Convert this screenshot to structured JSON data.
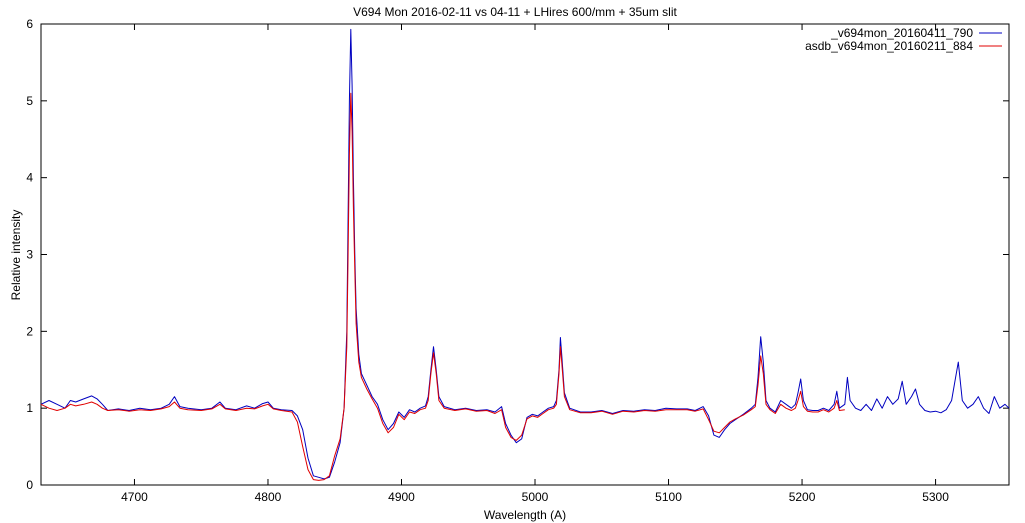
{
  "chart_data": {
    "type": "line",
    "title": "V694 Mon 2016-02-11 vs 04-11 + LHires 600/mm + 35um slit",
    "xlabel": "Wavelength (A)",
    "ylabel": "Relative intensity",
    "xlim": [
      4630,
      5355
    ],
    "ylim": [
      0,
      6
    ],
    "xticks": [
      4700,
      4800,
      4900,
      5000,
      5100,
      5200,
      5300
    ],
    "yticks": [
      0,
      1,
      2,
      3,
      4,
      5,
      6
    ],
    "grid": false,
    "legend": "top-right",
    "series": [
      {
        "name": "_v694mon_20160411_790",
        "color": "#0000c0",
        "points": [
          [
            4630,
            1.05
          ],
          [
            4636,
            1.1
          ],
          [
            4642,
            1.05
          ],
          [
            4648,
            1.0
          ],
          [
            4652,
            1.1
          ],
          [
            4656,
            1.08
          ],
          [
            4662,
            1.12
          ],
          [
            4668,
            1.16
          ],
          [
            4672,
            1.12
          ],
          [
            4676,
            1.05
          ],
          [
            4680,
            0.97
          ],
          [
            4688,
            0.99
          ],
          [
            4696,
            0.97
          ],
          [
            4704,
            1.0
          ],
          [
            4712,
            0.98
          ],
          [
            4720,
            1.0
          ],
          [
            4726,
            1.05
          ],
          [
            4730,
            1.15
          ],
          [
            4734,
            1.02
          ],
          [
            4740,
            1.0
          ],
          [
            4750,
            0.98
          ],
          [
            4758,
            1.0
          ],
          [
            4764,
            1.08
          ],
          [
            4768,
            1.0
          ],
          [
            4776,
            0.98
          ],
          [
            4784,
            1.03
          ],
          [
            4790,
            1.0
          ],
          [
            4796,
            1.06
          ],
          [
            4800,
            1.08
          ],
          [
            4804,
            1.0
          ],
          [
            4810,
            0.98
          ],
          [
            4818,
            0.97
          ],
          [
            4822,
            0.9
          ],
          [
            4826,
            0.72
          ],
          [
            4830,
            0.35
          ],
          [
            4834,
            0.12
          ],
          [
            4838,
            0.1
          ],
          [
            4842,
            0.08
          ],
          [
            4846,
            0.1
          ],
          [
            4850,
            0.3
          ],
          [
            4854,
            0.55
          ],
          [
            4857,
            1.0
          ],
          [
            4859,
            2.0
          ],
          [
            4860,
            3.5
          ],
          [
            4861,
            5.0
          ],
          [
            4862,
            5.93
          ],
          [
            4863,
            5.2
          ],
          [
            4864,
            4.0
          ],
          [
            4865,
            3.0
          ],
          [
            4866,
            2.3
          ],
          [
            4868,
            1.7
          ],
          [
            4870,
            1.45
          ],
          [
            4874,
            1.3
          ],
          [
            4878,
            1.15
          ],
          [
            4882,
            1.05
          ],
          [
            4886,
            0.85
          ],
          [
            4890,
            0.72
          ],
          [
            4894,
            0.8
          ],
          [
            4898,
            0.95
          ],
          [
            4902,
            0.88
          ],
          [
            4906,
            0.98
          ],
          [
            4910,
            0.95
          ],
          [
            4914,
            1.0
          ],
          [
            4918,
            1.03
          ],
          [
            4920,
            1.15
          ],
          [
            4922,
            1.5
          ],
          [
            4924,
            1.8
          ],
          [
            4926,
            1.5
          ],
          [
            4928,
            1.15
          ],
          [
            4932,
            1.02
          ],
          [
            4940,
            0.98
          ],
          [
            4948,
            1.0
          ],
          [
            4956,
            0.97
          ],
          [
            4964,
            0.98
          ],
          [
            4970,
            0.95
          ],
          [
            4975,
            1.02
          ],
          [
            4978,
            0.8
          ],
          [
            4982,
            0.65
          ],
          [
            4986,
            0.55
          ],
          [
            4990,
            0.6
          ],
          [
            4994,
            0.88
          ],
          [
            4998,
            0.92
          ],
          [
            5002,
            0.9
          ],
          [
            5006,
            0.95
          ],
          [
            5010,
            1.0
          ],
          [
            5014,
            1.02
          ],
          [
            5016,
            1.1
          ],
          [
            5018,
            1.5
          ],
          [
            5019,
            1.92
          ],
          [
            5020,
            1.7
          ],
          [
            5022,
            1.2
          ],
          [
            5026,
            1.0
          ],
          [
            5034,
            0.95
          ],
          [
            5042,
            0.95
          ],
          [
            5050,
            0.97
          ],
          [
            5058,
            0.93
          ],
          [
            5066,
            0.97
          ],
          [
            5074,
            0.96
          ],
          [
            5082,
            0.98
          ],
          [
            5090,
            0.97
          ],
          [
            5098,
            1.0
          ],
          [
            5106,
            0.99
          ],
          [
            5114,
            0.99
          ],
          [
            5120,
            0.97
          ],
          [
            5126,
            1.02
          ],
          [
            5130,
            0.9
          ],
          [
            5134,
            0.65
          ],
          [
            5138,
            0.62
          ],
          [
            5142,
            0.72
          ],
          [
            5146,
            0.8
          ],
          [
            5150,
            0.85
          ],
          [
            5156,
            0.92
          ],
          [
            5162,
            1.0
          ],
          [
            5165,
            1.05
          ],
          [
            5167,
            1.4
          ],
          [
            5169,
            1.93
          ],
          [
            5171,
            1.6
          ],
          [
            5173,
            1.1
          ],
          [
            5176,
            1.0
          ],
          [
            5180,
            0.95
          ],
          [
            5184,
            1.1
          ],
          [
            5188,
            1.05
          ],
          [
            5192,
            1.0
          ],
          [
            5195,
            1.05
          ],
          [
            5197,
            1.2
          ],
          [
            5199,
            1.38
          ],
          [
            5201,
            1.1
          ],
          [
            5204,
            0.98
          ],
          [
            5208,
            0.97
          ],
          [
            5212,
            0.97
          ],
          [
            5216,
            1.0
          ],
          [
            5220,
            0.97
          ],
          [
            5224,
            1.05
          ],
          [
            5226,
            1.22
          ],
          [
            5228,
            1.0
          ],
          [
            5232,
            1.05
          ],
          [
            5234,
            1.4
          ],
          [
            5236,
            1.1
          ],
          [
            5240,
            1.0
          ],
          [
            5244,
            0.97
          ],
          [
            5248,
            1.05
          ],
          [
            5252,
            0.97
          ],
          [
            5256,
            1.12
          ],
          [
            5260,
            1.0
          ],
          [
            5264,
            1.15
          ],
          [
            5268,
            1.05
          ],
          [
            5272,
            1.12
          ],
          [
            5275,
            1.35
          ],
          [
            5278,
            1.05
          ],
          [
            5282,
            1.15
          ],
          [
            5285,
            1.25
          ],
          [
            5288,
            1.05
          ],
          [
            5292,
            0.97
          ],
          [
            5296,
            0.95
          ],
          [
            5300,
            0.96
          ],
          [
            5304,
            0.94
          ],
          [
            5308,
            0.98
          ],
          [
            5312,
            1.1
          ],
          [
            5315,
            1.4
          ],
          [
            5317,
            1.6
          ],
          [
            5320,
            1.1
          ],
          [
            5324,
            1.0
          ],
          [
            5328,
            1.05
          ],
          [
            5332,
            1.15
          ],
          [
            5336,
            1.0
          ],
          [
            5340,
            0.93
          ],
          [
            5344,
            1.15
          ],
          [
            5348,
            1.0
          ],
          [
            5352,
            1.05
          ],
          [
            5355,
            1.0
          ]
        ]
      },
      {
        "name": "asdb_v694mon_20160211_884",
        "color": "#e00000",
        "points": [
          [
            4630,
            1.05
          ],
          [
            4636,
            1.0
          ],
          [
            4642,
            0.97
          ],
          [
            4648,
            1.0
          ],
          [
            4652,
            1.05
          ],
          [
            4656,
            1.03
          ],
          [
            4662,
            1.05
          ],
          [
            4668,
            1.08
          ],
          [
            4672,
            1.05
          ],
          [
            4676,
            1.0
          ],
          [
            4680,
            0.97
          ],
          [
            4688,
            0.98
          ],
          [
            4696,
            0.96
          ],
          [
            4704,
            0.98
          ],
          [
            4712,
            0.97
          ],
          [
            4720,
            0.99
          ],
          [
            4726,
            1.02
          ],
          [
            4730,
            1.08
          ],
          [
            4734,
            1.0
          ],
          [
            4740,
            0.98
          ],
          [
            4750,
            0.97
          ],
          [
            4758,
            0.99
          ],
          [
            4764,
            1.05
          ],
          [
            4768,
            0.99
          ],
          [
            4776,
            0.97
          ],
          [
            4784,
            1.0
          ],
          [
            4790,
            0.99
          ],
          [
            4796,
            1.03
          ],
          [
            4800,
            1.05
          ],
          [
            4804,
            0.99
          ],
          [
            4810,
            0.97
          ],
          [
            4818,
            0.95
          ],
          [
            4822,
            0.82
          ],
          [
            4826,
            0.5
          ],
          [
            4830,
            0.2
          ],
          [
            4834,
            0.07
          ],
          [
            4838,
            0.06
          ],
          [
            4842,
            0.07
          ],
          [
            4846,
            0.12
          ],
          [
            4850,
            0.38
          ],
          [
            4854,
            0.6
          ],
          [
            4857,
            1.0
          ],
          [
            4859,
            1.8
          ],
          [
            4860,
            3.0
          ],
          [
            4861,
            4.3
          ],
          [
            4862,
            5.1
          ],
          [
            4863,
            4.6
          ],
          [
            4864,
            3.6
          ],
          [
            4865,
            2.8
          ],
          [
            4866,
            2.1
          ],
          [
            4868,
            1.6
          ],
          [
            4870,
            1.4
          ],
          [
            4874,
            1.25
          ],
          [
            4878,
            1.12
          ],
          [
            4882,
            1.0
          ],
          [
            4886,
            0.8
          ],
          [
            4890,
            0.68
          ],
          [
            4894,
            0.75
          ],
          [
            4898,
            0.92
          ],
          [
            4902,
            0.85
          ],
          [
            4906,
            0.95
          ],
          [
            4910,
            0.93
          ],
          [
            4914,
            0.98
          ],
          [
            4918,
            1.0
          ],
          [
            4920,
            1.1
          ],
          [
            4922,
            1.45
          ],
          [
            4924,
            1.72
          ],
          [
            4926,
            1.45
          ],
          [
            4928,
            1.1
          ],
          [
            4932,
            1.0
          ],
          [
            4940,
            0.97
          ],
          [
            4948,
            0.99
          ],
          [
            4956,
            0.96
          ],
          [
            4964,
            0.97
          ],
          [
            4970,
            0.93
          ],
          [
            4975,
            0.98
          ],
          [
            4978,
            0.75
          ],
          [
            4982,
            0.62
          ],
          [
            4986,
            0.58
          ],
          [
            4990,
            0.65
          ],
          [
            4994,
            0.86
          ],
          [
            4998,
            0.9
          ],
          [
            5002,
            0.88
          ],
          [
            5006,
            0.93
          ],
          [
            5010,
            0.98
          ],
          [
            5014,
            1.0
          ],
          [
            5016,
            1.05
          ],
          [
            5018,
            1.45
          ],
          [
            5019,
            1.8
          ],
          [
            5020,
            1.6
          ],
          [
            5022,
            1.15
          ],
          [
            5026,
            0.98
          ],
          [
            5034,
            0.94
          ],
          [
            5042,
            0.94
          ],
          [
            5050,
            0.96
          ],
          [
            5058,
            0.92
          ],
          [
            5066,
            0.96
          ],
          [
            5074,
            0.95
          ],
          [
            5082,
            0.97
          ],
          [
            5090,
            0.96
          ],
          [
            5098,
            0.98
          ],
          [
            5106,
            0.98
          ],
          [
            5114,
            0.98
          ],
          [
            5120,
            0.96
          ],
          [
            5126,
            0.99
          ],
          [
            5130,
            0.85
          ],
          [
            5134,
            0.7
          ],
          [
            5138,
            0.68
          ],
          [
            5142,
            0.75
          ],
          [
            5146,
            0.82
          ],
          [
            5150,
            0.86
          ],
          [
            5156,
            0.91
          ],
          [
            5162,
            0.98
          ],
          [
            5165,
            1.02
          ],
          [
            5167,
            1.3
          ],
          [
            5169,
            1.68
          ],
          [
            5171,
            1.45
          ],
          [
            5173,
            1.05
          ],
          [
            5176,
            0.98
          ],
          [
            5180,
            0.93
          ],
          [
            5184,
            1.05
          ],
          [
            5188,
            1.0
          ],
          [
            5192,
            0.97
          ],
          [
            5195,
            1.0
          ],
          [
            5197,
            1.1
          ],
          [
            5199,
            1.22
          ],
          [
            5201,
            1.02
          ],
          [
            5204,
            0.96
          ],
          [
            5208,
            0.95
          ],
          [
            5212,
            0.95
          ],
          [
            5216,
            0.98
          ],
          [
            5220,
            0.95
          ],
          [
            5224,
            1.0
          ],
          [
            5226,
            1.1
          ],
          [
            5228,
            0.97
          ],
          [
            5232,
            0.98
          ]
        ]
      }
    ]
  }
}
